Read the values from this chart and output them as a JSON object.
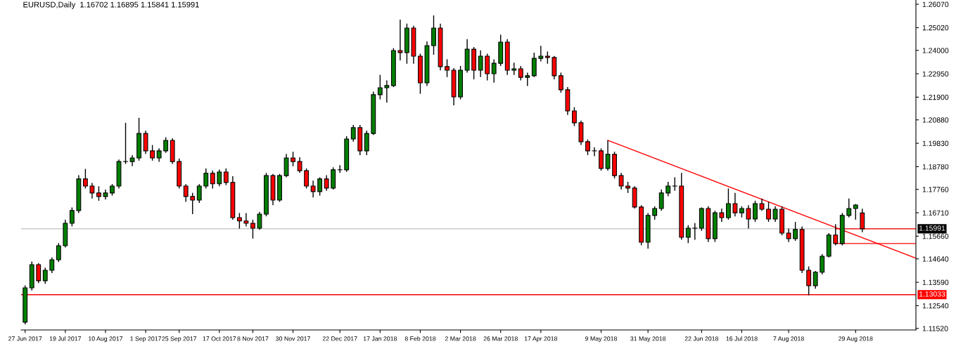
{
  "chart_data": {
    "type": "candlestick",
    "title": "EURUSD,Daily  1.16702 1.16895 1.15841 1.15991",
    "categories": [
      "27 Jun 2017",
      null,
      null,
      null,
      null,
      null,
      "19 Jul 2017",
      null,
      null,
      null,
      null,
      null,
      "10 Aug 2017",
      null,
      null,
      null,
      null,
      null,
      "1 Sep 2017",
      null,
      null,
      null,
      null,
      "25 Sep 2017",
      null,
      null,
      null,
      null,
      null,
      "17 Oct 2017",
      null,
      null,
      null,
      null,
      "8 Nov 2017",
      null,
      null,
      null,
      null,
      null,
      "30 Nov 2017",
      null,
      null,
      null,
      null,
      null,
      null,
      "22 Dec 2017",
      null,
      null,
      null,
      null,
      null,
      "17 Jan 2018",
      null,
      null,
      null,
      null,
      null,
      "8 Feb 2018",
      null,
      null,
      null,
      null,
      null,
      "2 Mar 2018",
      null,
      null,
      null,
      null,
      null,
      "26 Mar 2018",
      null,
      null,
      null,
      null,
      null,
      "17 Apr 2018",
      null,
      null,
      null,
      null,
      null,
      null,
      null,
      null,
      "9 May 2018",
      null,
      null,
      null,
      null,
      null,
      null,
      "31 May 2018",
      null,
      null,
      null,
      null,
      null,
      null,
      null,
      "22 Jun 2018",
      null,
      null,
      null,
      null,
      null,
      "16 Jul 2018",
      null,
      null,
      null,
      null,
      null,
      null,
      "7 Aug 2018",
      null,
      null,
      null,
      null,
      null,
      null,
      null,
      null,
      null,
      "29 Aug 2018",
      null,
      null,
      null,
      null,
      null,
      null,
      null,
      null,
      null
    ],
    "ohlc": [
      [
        1.118,
        1.1345,
        1.117,
        1.1334
      ],
      [
        1.1334,
        1.1452,
        1.1322,
        1.1438
      ],
      [
        1.1438,
        1.1445,
        1.1355,
        1.1366
      ],
      [
        1.1366,
        1.1425,
        1.1352,
        1.1413
      ],
      [
        1.1413,
        1.147,
        1.14,
        1.146
      ],
      [
        1.146,
        1.1535,
        1.145,
        1.1523
      ],
      [
        1.1523,
        1.164,
        1.1515,
        1.1624
      ],
      [
        1.1624,
        1.1695,
        1.161,
        1.1681
      ],
      [
        1.1681,
        1.184,
        1.167,
        1.1823
      ],
      [
        1.1823,
        1.1868,
        1.178,
        1.1791
      ],
      [
        1.1791,
        1.1805,
        1.1735,
        1.176
      ],
      [
        1.176,
        1.179,
        1.1725,
        1.1744
      ],
      [
        1.1744,
        1.1775,
        1.173,
        1.176
      ],
      [
        1.176,
        1.18,
        1.1748,
        1.1791
      ],
      [
        1.1791,
        1.191,
        1.178,
        1.1901
      ],
      [
        1.1901,
        1.2075,
        1.189,
        1.1901
      ],
      [
        1.1901,
        1.193,
        1.188,
        1.1917
      ],
      [
        1.1917,
        1.2097,
        1.1905,
        1.2027
      ],
      [
        1.2027,
        1.204,
        1.1935,
        1.1949
      ],
      [
        1.1949,
        1.1975,
        1.1905,
        1.1917
      ],
      [
        1.1917,
        1.196,
        1.19,
        1.1949
      ],
      [
        1.1949,
        1.201,
        1.194,
        1.1996
      ],
      [
        1.1996,
        1.2005,
        1.189,
        1.1901
      ],
      [
        1.1901,
        1.1915,
        1.178,
        1.1791
      ],
      [
        1.1791,
        1.18,
        1.172,
        1.1744
      ],
      [
        1.1744,
        1.176,
        1.1665,
        1.1728
      ],
      [
        1.1728,
        1.18,
        1.1715,
        1.1791
      ],
      [
        1.1791,
        1.187,
        1.178,
        1.1848
      ],
      [
        1.1848,
        1.186,
        1.178,
        1.1801
      ],
      [
        1.1801,
        1.1865,
        1.179,
        1.1854
      ],
      [
        1.1854,
        1.187,
        1.1795,
        1.1807
      ],
      [
        1.1807,
        1.1835,
        1.164,
        1.1649
      ],
      [
        1.1649,
        1.167,
        1.16,
        1.1634
      ],
      [
        1.1634,
        1.167,
        1.161,
        1.1624
      ],
      [
        1.1624,
        1.164,
        1.1555,
        1.1602
      ],
      [
        1.1602,
        1.1675,
        1.1595,
        1.1665
      ],
      [
        1.1665,
        1.185,
        1.1655,
        1.1838
      ],
      [
        1.1838,
        1.1845,
        1.1705,
        1.1728
      ],
      [
        1.1728,
        1.1845,
        1.172,
        1.1838
      ],
      [
        1.1838,
        1.1935,
        1.183,
        1.1917
      ],
      [
        1.1917,
        1.1945,
        1.188,
        1.1901
      ],
      [
        1.1901,
        1.192,
        1.185,
        1.186
      ],
      [
        1.186,
        1.187,
        1.178,
        1.1791
      ],
      [
        1.1791,
        1.1815,
        1.174,
        1.1766
      ],
      [
        1.1766,
        1.183,
        1.1748,
        1.1823
      ],
      [
        1.1823,
        1.184,
        1.177,
        1.1782
      ],
      [
        1.1782,
        1.1875,
        1.1775,
        1.1864
      ],
      [
        1.1864,
        1.1885,
        1.185,
        1.1864
      ],
      [
        1.1864,
        1.2015,
        1.1855,
        1.2002
      ],
      [
        1.2002,
        1.2065,
        1.199,
        1.2053
      ],
      [
        1.2053,
        1.2065,
        1.193,
        1.1949
      ],
      [
        1.1949,
        1.204,
        1.193,
        1.2027
      ],
      [
        1.2027,
        1.2215,
        1.202,
        1.2201
      ],
      [
        1.2201,
        1.229,
        1.218,
        1.2232
      ],
      [
        1.2232,
        1.2265,
        1.2165,
        1.2242
      ],
      [
        1.2242,
        1.241,
        1.2235,
        1.2399
      ],
      [
        1.2399,
        1.2538,
        1.2355,
        1.239
      ],
      [
        1.239,
        1.252,
        1.234,
        1.25
      ],
      [
        1.25,
        1.251,
        1.234,
        1.2374
      ],
      [
        1.2374,
        1.2385,
        1.2205,
        1.2254
      ],
      [
        1.2254,
        1.244,
        1.224,
        1.2421
      ],
      [
        1.2421,
        1.2557,
        1.238,
        1.25
      ],
      [
        1.25,
        1.252,
        1.231,
        1.2327
      ],
      [
        1.2327,
        1.236,
        1.228,
        1.2311
      ],
      [
        1.2311,
        1.232,
        1.2153,
        1.2191
      ],
      [
        1.2191,
        1.233,
        1.218,
        1.2311
      ],
      [
        1.2311,
        1.245,
        1.23,
        1.2405
      ],
      [
        1.2405,
        1.2415,
        1.227,
        1.2311
      ],
      [
        1.2311,
        1.24,
        1.228,
        1.2374
      ],
      [
        1.2374,
        1.2385,
        1.2265,
        1.2295
      ],
      [
        1.2295,
        1.236,
        1.2255,
        1.2342
      ],
      [
        1.2342,
        1.247,
        1.233,
        1.2437
      ],
      [
        1.2437,
        1.245,
        1.229,
        1.2311
      ],
      [
        1.2311,
        1.2345,
        1.229,
        1.2317
      ],
      [
        1.2317,
        1.233,
        1.2265,
        1.2279
      ],
      [
        1.2279,
        1.23,
        1.224,
        1.2286
      ],
      [
        1.2286,
        1.239,
        1.228,
        1.2364
      ],
      [
        1.2364,
        1.242,
        1.235,
        1.2374
      ],
      [
        1.2374,
        1.2395,
        1.234,
        1.2368
      ],
      [
        1.2368,
        1.2375,
        1.227,
        1.2286
      ],
      [
        1.2286,
        1.23,
        1.221,
        1.2223
      ],
      [
        1.2223,
        1.2235,
        1.211,
        1.2128
      ],
      [
        1.2128,
        1.2145,
        1.206,
        1.2075
      ],
      [
        1.2075,
        1.2085,
        1.1975,
        1.199
      ],
      [
        1.199,
        1.2,
        1.193,
        1.1949
      ],
      [
        1.1949,
        1.1965,
        1.1925,
        1.1949
      ],
      [
        1.1949,
        1.196,
        1.186,
        1.187
      ],
      [
        1.187,
        1.1996,
        1.186,
        1.1933
      ],
      [
        1.1933,
        1.1945,
        1.1825,
        1.1838
      ],
      [
        1.1838,
        1.185,
        1.1775,
        1.1791
      ],
      [
        1.1791,
        1.181,
        1.176,
        1.1782
      ],
      [
        1.1782,
        1.179,
        1.169,
        1.1697
      ],
      [
        1.1697,
        1.1705,
        1.1525,
        1.1539
      ],
      [
        1.1539,
        1.167,
        1.151,
        1.1659
      ],
      [
        1.1659,
        1.17,
        1.164,
        1.169
      ],
      [
        1.169,
        1.1775,
        1.168,
        1.176
      ],
      [
        1.176,
        1.181,
        1.1745,
        1.1791
      ],
      [
        1.1791,
        1.183,
        1.177,
        1.1791
      ],
      [
        1.1791,
        1.185,
        1.155,
        1.1561
      ],
      [
        1.1561,
        1.1615,
        1.1535,
        1.1602
      ],
      [
        1.1602,
        1.1625,
        1.155,
        1.1602
      ],
      [
        1.1602,
        1.1695,
        1.159,
        1.169
      ],
      [
        1.169,
        1.17,
        1.154,
        1.1555
      ],
      [
        1.1555,
        1.168,
        1.154,
        1.1671
      ],
      [
        1.1671,
        1.169,
        1.163,
        1.1649
      ],
      [
        1.1649,
        1.178,
        1.164,
        1.1712
      ],
      [
        1.1712,
        1.176,
        1.1655,
        1.1671
      ],
      [
        1.1671,
        1.17,
        1.165,
        1.169
      ],
      [
        1.169,
        1.1705,
        1.16,
        1.1643
      ],
      [
        1.1643,
        1.1725,
        1.163,
        1.1712
      ],
      [
        1.1712,
        1.1735,
        1.168,
        1.1687
      ],
      [
        1.1687,
        1.172,
        1.163,
        1.1643
      ],
      [
        1.1643,
        1.17,
        1.163,
        1.1687
      ],
      [
        1.1687,
        1.17,
        1.157,
        1.158
      ],
      [
        1.158,
        1.16,
        1.154,
        1.1555
      ],
      [
        1.1555,
        1.163,
        1.1545,
        1.1596
      ],
      [
        1.1596,
        1.161,
        1.14,
        1.1413
      ],
      [
        1.1413,
        1.143,
        1.1301,
        1.1344
      ],
      [
        1.1344,
        1.141,
        1.133,
        1.1404
      ],
      [
        1.1404,
        1.1485,
        1.1395,
        1.1476
      ],
      [
        1.1476,
        1.158,
        1.147,
        1.1571
      ],
      [
        1.1571,
        1.162,
        1.1525,
        1.1533
      ],
      [
        1.1533,
        1.167,
        1.1525,
        1.1659
      ],
      [
        1.1659,
        1.1735,
        1.165,
        1.169
      ],
      [
        1.169,
        1.171,
        1.164,
        1.1706
      ],
      [
        1.16702,
        1.16895,
        1.15841,
        1.15991
      ],
      null,
      null,
      null,
      null,
      null,
      null,
      null,
      null
    ],
    "series": [
      {
        "type": "line",
        "color": "#ff0000",
        "values": [
          null,
          null,
          null,
          null,
          null,
          null,
          null,
          null,
          null,
          null,
          null,
          null,
          null,
          null,
          null,
          null,
          null,
          null,
          null,
          null,
          null,
          null,
          null,
          null,
          null,
          null,
          null,
          null,
          null,
          null,
          null,
          null,
          null,
          null,
          null,
          null,
          null,
          null,
          null,
          null,
          null,
          null,
          null,
          null,
          null,
          null,
          null,
          null,
          null,
          null,
          null,
          null,
          null,
          null,
          null,
          null,
          null,
          null,
          null,
          null,
          null,
          null,
          null,
          null,
          null,
          null,
          null,
          null,
          null,
          null,
          null,
          null,
          null,
          null,
          null,
          null,
          null,
          null,
          null,
          null,
          null,
          null,
          null,
          null,
          null,
          null,
          null,
          1.1996,
          null,
          null,
          null,
          null,
          null,
          null,
          null,
          null,
          null,
          null,
          null,
          null,
          null,
          null,
          null,
          null,
          null,
          null,
          null,
          null,
          null,
          null,
          null,
          null,
          null,
          null,
          null,
          null,
          null,
          null,
          null,
          null,
          null,
          null,
          null,
          null,
          null,
          null,
          null,
          null,
          null,
          null,
          null,
          null,
          null,
          1.1467
        ]
      },
      {
        "type": "line",
        "color": "#ff0000",
        "values": [
          null,
          null,
          null,
          null,
          null,
          null,
          null,
          null,
          null,
          null,
          null,
          null,
          null,
          null,
          null,
          null,
          null,
          null,
          null,
          null,
          null,
          null,
          null,
          null,
          null,
          null,
          null,
          null,
          null,
          null,
          null,
          null,
          null,
          null,
          null,
          null,
          null,
          null,
          null,
          null,
          null,
          null,
          null,
          null,
          null,
          null,
          null,
          null,
          null,
          null,
          null,
          null,
          null,
          null,
          null,
          null,
          null,
          null,
          null,
          null,
          null,
          null,
          null,
          null,
          null,
          null,
          null,
          null,
          null,
          null,
          null,
          null,
          null,
          null,
          null,
          null,
          null,
          null,
          null,
          null,
          null,
          null,
          null,
          null,
          null,
          null,
          null,
          null,
          null,
          null,
          null,
          null,
          null,
          null,
          null,
          null,
          null,
          null,
          null,
          null,
          null,
          null,
          null,
          null,
          null,
          null,
          null,
          null,
          null,
          null,
          null,
          null,
          null,
          null,
          null,
          null,
          null,
          null,
          null,
          null,
          null,
          1.1599,
          null,
          null,
          null,
          null,
          null,
          null,
          null,
          null,
          null,
          null,
          null,
          1.1599
        ]
      },
      {
        "type": "line",
        "color": "#ff0000",
        "values": [
          null,
          null,
          null,
          null,
          null,
          null,
          null,
          null,
          null,
          null,
          null,
          null,
          null,
          null,
          null,
          null,
          null,
          null,
          null,
          null,
          null,
          null,
          null,
          null,
          null,
          null,
          null,
          null,
          null,
          null,
          null,
          null,
          null,
          null,
          null,
          null,
          null,
          null,
          null,
          null,
          null,
          null,
          null,
          null,
          null,
          null,
          null,
          null,
          null,
          null,
          null,
          null,
          null,
          null,
          null,
          null,
          null,
          null,
          null,
          null,
          null,
          null,
          null,
          null,
          null,
          null,
          null,
          null,
          null,
          null,
          null,
          null,
          null,
          null,
          null,
          null,
          null,
          null,
          null,
          null,
          null,
          null,
          null,
          null,
          null,
          null,
          null,
          null,
          null,
          null,
          null,
          null,
          null,
          null,
          null,
          null,
          null,
          null,
          null,
          null,
          null,
          null,
          null,
          null,
          null,
          null,
          null,
          null,
          null,
          null,
          null,
          null,
          null,
          null,
          null,
          null,
          null,
          null,
          null,
          null,
          null,
          1.1533,
          null,
          null,
          null,
          null,
          null,
          null,
          null,
          null,
          null,
          null,
          null,
          1.1533
        ]
      }
    ],
    "ref_lines": [
      {
        "axis": "y",
        "value": 1.15991,
        "label": "1.15991",
        "color": "#c0c0c0"
      },
      {
        "axis": "y",
        "value": 1.13033,
        "label": "1.13033",
        "color": "#ff0000"
      }
    ],
    "ylim": [
      1.1145,
      1.2626
    ],
    "yticks": [
      {
        "value": 1.2607,
        "label": "1.26070"
      },
      {
        "value": 1.2502,
        "label": "1.25020"
      },
      {
        "value": 1.24,
        "label": "1.24000"
      },
      {
        "value": 1.2295,
        "label": "1.22950"
      },
      {
        "value": 1.219,
        "label": "1.21900"
      },
      {
        "value": 1.2088,
        "label": "1.20880"
      },
      {
        "value": 1.1983,
        "label": "1.19830"
      },
      {
        "value": 1.1878,
        "label": "1.18780"
      },
      {
        "value": 1.1776,
        "label": "1.17760"
      },
      {
        "value": 1.1671,
        "label": "1.16710"
      },
      {
        "value": 1.1566,
        "label": "1.15660"
      },
      {
        "value": 1.1464,
        "label": "1.14640"
      },
      {
        "value": 1.1359,
        "label": "1.13590"
      },
      {
        "value": 1.1254,
        "label": "1.12540"
      },
      {
        "value": 1.1152,
        "label": "1.11520"
      }
    ]
  }
}
